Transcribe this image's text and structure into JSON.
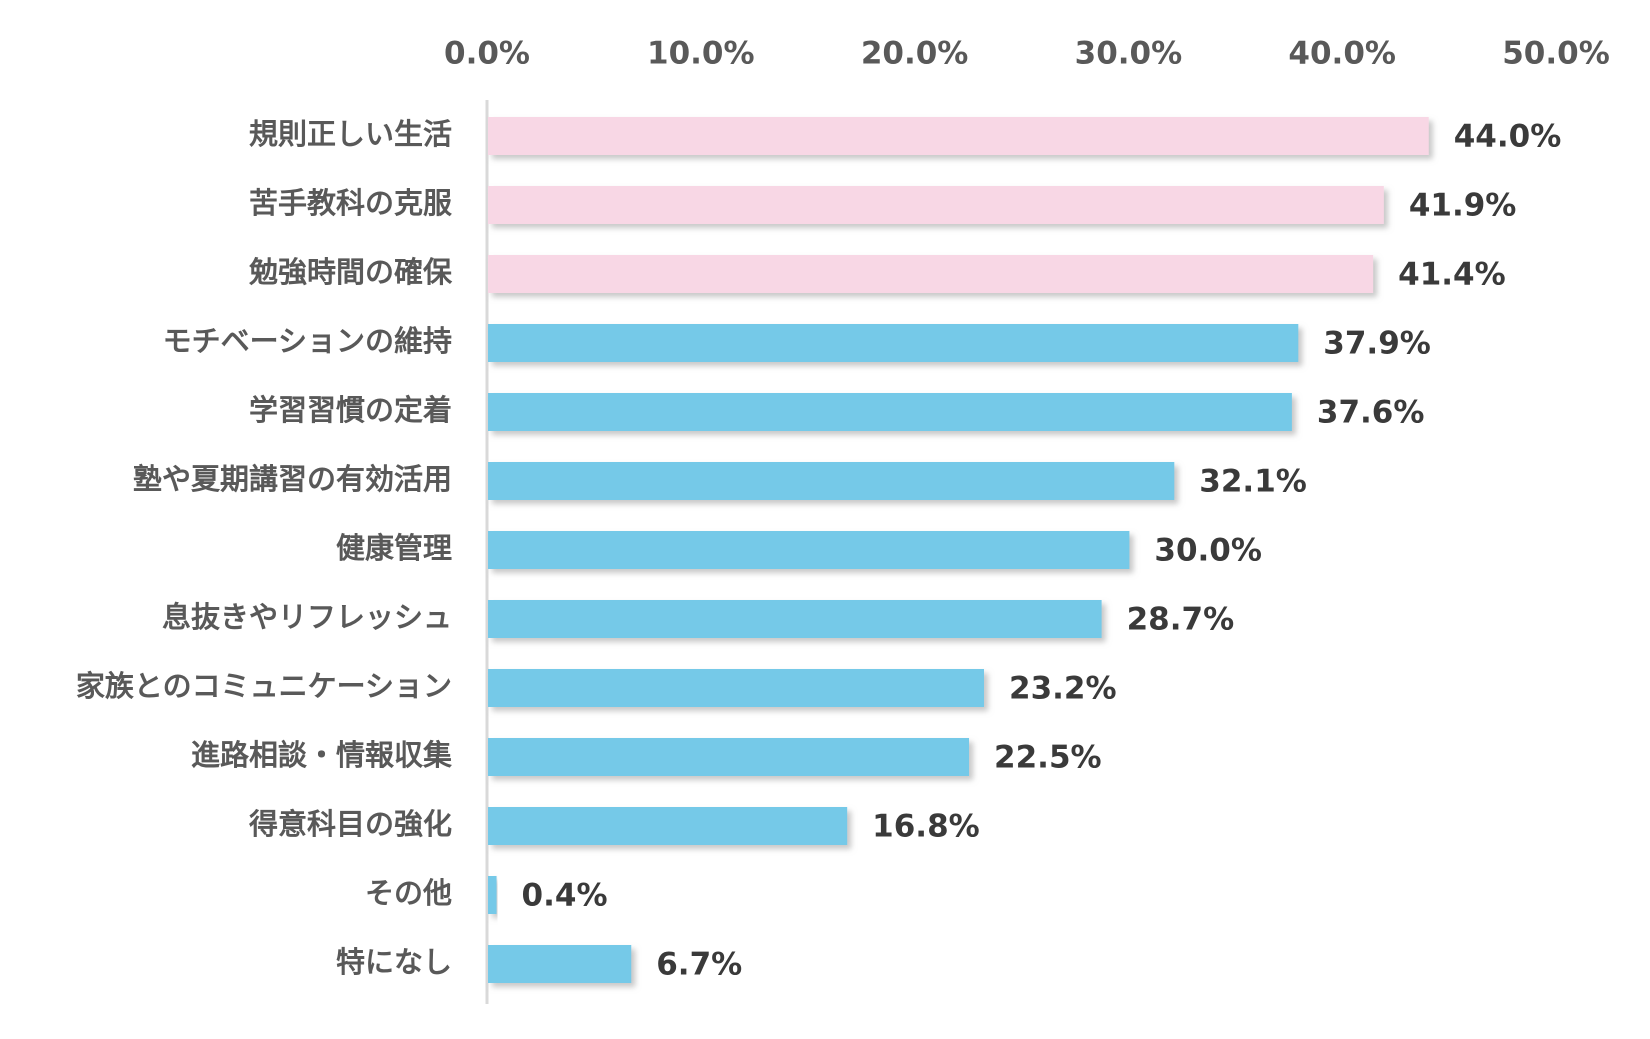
{
  "chart_data": {
    "type": "bar",
    "orientation": "horizontal",
    "xlim": [
      0,
      50
    ],
    "tick_labels": [
      "0.0%",
      "10.0%",
      "20.0%",
      "30.0%",
      "40.0%",
      "50.0%"
    ],
    "tick_values": [
      0,
      10,
      20,
      30,
      40,
      50
    ],
    "x_axis_position": "top",
    "grid": false,
    "categories": [
      "規則正しい生活",
      "苦手教科の克服",
      "勉強時間の確保",
      "モチベーションの維持",
      "学習習慣の定着",
      "塾や夏期講習の有効活用",
      "健康管理",
      "息抜きやリフレッシュ",
      "家族とのコミュニケーション",
      "進路相談・情報収集",
      "得意科目の強化",
      "その他",
      "特になし"
    ],
    "values": [
      44.0,
      41.9,
      41.4,
      37.9,
      37.6,
      32.1,
      30.0,
      28.7,
      23.2,
      22.5,
      16.8,
      0.4,
      6.7
    ],
    "value_labels": [
      "44.0%",
      "41.9%",
      "41.4%",
      "37.9%",
      "37.6%",
      "32.1%",
      "30.0%",
      "28.7%",
      "23.2%",
      "22.5%",
      "16.8%",
      "0.4%",
      "6.7%"
    ],
    "highlight_count": 3,
    "colors": {
      "highlight": "#f8d7e5",
      "normal": "#74c9e8",
      "shadow": "#bfbfbf",
      "axis": "#d9d9d9"
    }
  }
}
